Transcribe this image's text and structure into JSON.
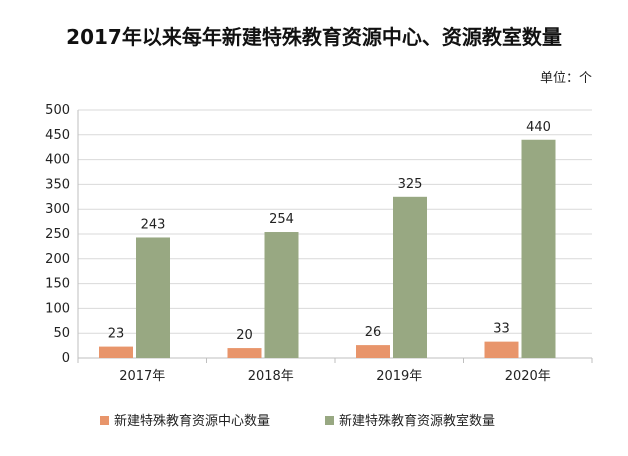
{
  "chart_data": {
    "type": "bar",
    "title": "2017年以来每年新建特殊教育资源中心、资源教室数量",
    "unit_label": "单位：个",
    "categories": [
      "2017年",
      "2018年",
      "2019年",
      "2020年"
    ],
    "series": [
      {
        "name": "新建特殊教育资源中心数量",
        "values": [
          23,
          20,
          26,
          33
        ],
        "color": "#E8956B"
      },
      {
        "name": "新建特殊教育资源教室数量",
        "values": [
          243,
          254,
          325,
          440
        ],
        "color": "#98A882"
      }
    ],
    "ylim": [
      0,
      500
    ],
    "yticks": [
      0,
      50,
      100,
      150,
      200,
      250,
      300,
      350,
      400,
      450,
      500
    ],
    "grid": true,
    "legend_position": "bottom"
  }
}
